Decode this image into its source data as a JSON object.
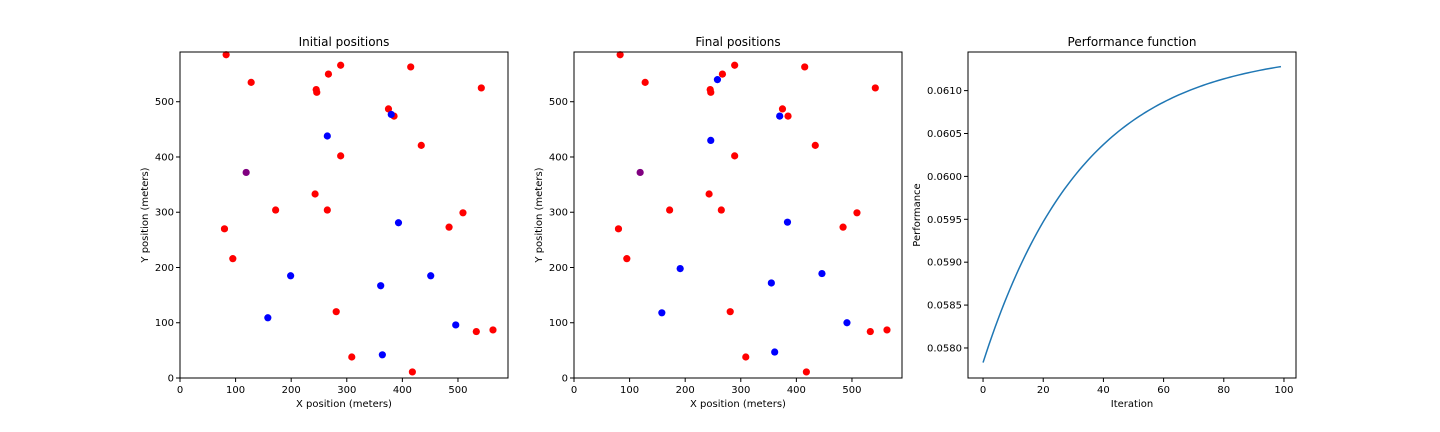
{
  "chart_data": [
    {
      "type": "scatter",
      "title": "Initial positions",
      "xlabel": "X position (meters)",
      "ylabel": "Y position (meters)",
      "xlim": [
        0,
        590
      ],
      "ylim": [
        0,
        590
      ],
      "xticks": [
        0,
        100,
        200,
        300,
        400,
        500
      ],
      "yticks": [
        0,
        100,
        200,
        300,
        400,
        500
      ],
      "grid": false,
      "series": [
        {
          "color": "#ff0000",
          "points": [
            [
              83,
              585
            ],
            [
              128,
              535
            ],
            [
              267,
              550
            ],
            [
              289,
              566
            ],
            [
              415,
              563
            ],
            [
              542,
              525
            ],
            [
              245,
              522
            ],
            [
              246,
              517
            ],
            [
              375,
              487
            ],
            [
              385,
              474
            ],
            [
              434,
              421
            ],
            [
              289,
              402
            ],
            [
              243,
              333
            ],
            [
              172,
              304
            ],
            [
              265,
              304
            ],
            [
              509,
              299
            ],
            [
              80,
              270
            ],
            [
              484,
              273
            ],
            [
              95,
              216
            ],
            [
              281,
              120
            ],
            [
              533,
              84
            ],
            [
              563,
              87
            ],
            [
              309,
              38
            ],
            [
              418,
              11
            ]
          ]
        },
        {
          "color": "#0000ff",
          "points": [
            [
              265,
              438
            ],
            [
              380,
              477
            ],
            [
              393,
              281
            ],
            [
              199,
              185
            ],
            [
              451,
              185
            ],
            [
              361,
              167
            ],
            [
              158,
              109
            ],
            [
              496,
              96
            ],
            [
              364,
              42
            ]
          ]
        },
        {
          "color": "#800080",
          "points": [
            [
              119,
              372
            ]
          ]
        }
      ]
    },
    {
      "type": "scatter",
      "title": "Final positions",
      "xlabel": "X position (meters)",
      "ylabel": "Y position (meters)",
      "xlim": [
        0,
        590
      ],
      "ylim": [
        0,
        590
      ],
      "xticks": [
        0,
        100,
        200,
        300,
        400,
        500
      ],
      "yticks": [
        0,
        100,
        200,
        300,
        400,
        500
      ],
      "grid": false,
      "series": [
        {
          "color": "#ff0000",
          "points": [
            [
              83,
              585
            ],
            [
              128,
              535
            ],
            [
              267,
              550
            ],
            [
              289,
              566
            ],
            [
              415,
              563
            ],
            [
              542,
              525
            ],
            [
              245,
              522
            ],
            [
              246,
              517
            ],
            [
              375,
              487
            ],
            [
              385,
              474
            ],
            [
              434,
              421
            ],
            [
              289,
              402
            ],
            [
              243,
              333
            ],
            [
              172,
              304
            ],
            [
              265,
              304
            ],
            [
              509,
              299
            ],
            [
              80,
              270
            ],
            [
              484,
              273
            ],
            [
              95,
              216
            ],
            [
              281,
              120
            ],
            [
              533,
              84
            ],
            [
              563,
              87
            ],
            [
              309,
              38
            ],
            [
              418,
              11
            ]
          ]
        },
        {
          "color": "#0000ff",
          "points": [
            [
              258,
              540
            ],
            [
              370,
              474
            ],
            [
              246,
              430
            ],
            [
              384,
              282
            ],
            [
              191,
              198
            ],
            [
              446,
              189
            ],
            [
              355,
              172
            ],
            [
              158,
              118
            ],
            [
              491,
              100
            ],
            [
              361,
              47
            ]
          ]
        },
        {
          "color": "#800080",
          "points": [
            [
              119,
              372
            ]
          ]
        }
      ]
    },
    {
      "type": "line",
      "title": "Performance function",
      "xlabel": "Iteration",
      "ylabel": "Performance",
      "xlim": [
        -5,
        104
      ],
      "ylim": [
        0.05765,
        0.06145
      ],
      "xticks": [
        0,
        20,
        40,
        60,
        80,
        100
      ],
      "yticks": [
        0.058,
        0.0585,
        0.059,
        0.0595,
        0.06,
        0.0605,
        0.061
      ],
      "yticklabels": [
        "0.0580",
        "0.0585",
        "0.0590",
        "0.0595",
        "0.0600",
        "0.0605",
        "0.0610"
      ],
      "grid": false,
      "series": [
        {
          "color": "#1f77b4",
          "x_start": 0,
          "x_end": 99,
          "curve": "exponential",
          "y_start": 0.05783,
          "y_end": 0.06128,
          "rate": 0.03
        }
      ]
    }
  ]
}
